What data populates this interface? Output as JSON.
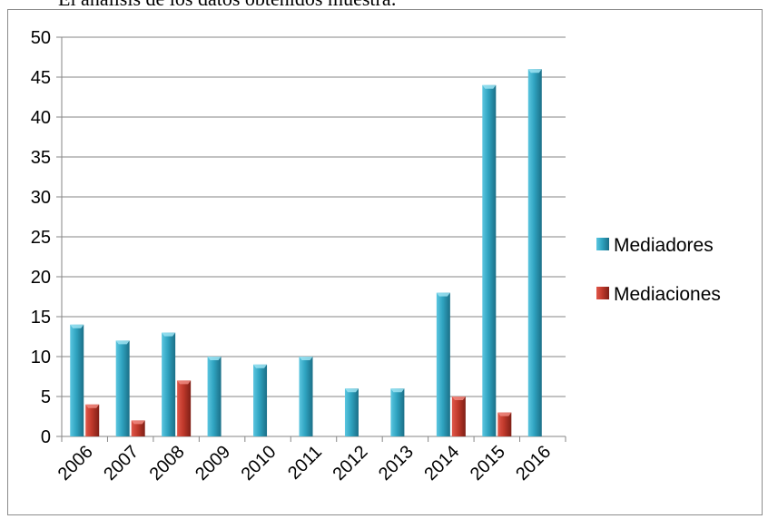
{
  "page": {
    "text_above": "El análisis de los datos obtenidos muestra:"
  },
  "chart_data": {
    "type": "bar",
    "title": "",
    "xlabel": "",
    "ylabel": "",
    "categories": [
      "2006",
      "2007",
      "2008",
      "2009",
      "2010",
      "2011",
      "2012",
      "2013",
      "2014",
      "2015",
      "2016"
    ],
    "series": [
      {
        "name": "Mediadores",
        "color": "#31a6c4",
        "values": [
          14,
          12,
          13,
          10,
          9,
          10,
          6,
          6,
          18,
          44,
          46
        ]
      },
      {
        "name": "Mediaciones",
        "color": "#c0392b",
        "values": [
          4,
          2,
          7,
          0,
          0,
          0,
          0,
          0,
          5,
          3,
          0
        ]
      }
    ],
    "ylim": [
      0,
      50
    ],
    "yticks": [
      0,
      5,
      10,
      15,
      20,
      25,
      30,
      35,
      40,
      45,
      50
    ],
    "grid": true,
    "legend_position": "right"
  }
}
